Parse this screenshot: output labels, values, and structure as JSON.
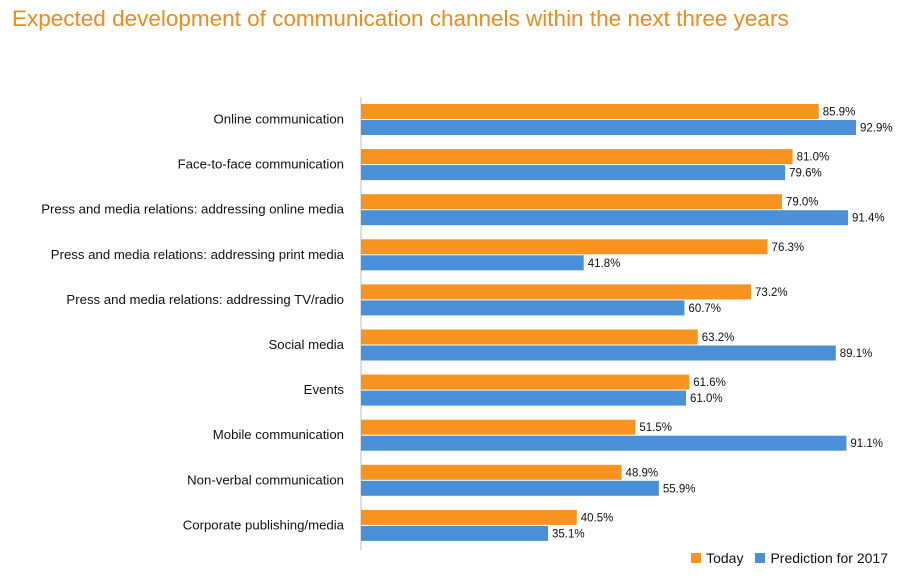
{
  "chart_data": {
    "type": "bar",
    "orientation": "horizontal",
    "title": "Expected development of communication channels within the next three years",
    "categories": [
      "Online communication",
      "Face-to-face communication",
      "Press and media relations: addressing online media",
      "Press and media relations: addressing print media",
      "Press and media relations: addressing TV/radio",
      "Social media",
      "Events",
      "Mobile communication",
      "Non-verbal communication",
      "Corporate publishing/media"
    ],
    "series": [
      {
        "name": "Today",
        "color": "#f7931e",
        "values": [
          85.9,
          81.0,
          79.0,
          76.3,
          73.2,
          63.2,
          61.6,
          51.5,
          48.9,
          40.5
        ],
        "labels": [
          "85.9%",
          "81.0%",
          "79.0%",
          "76.3%",
          "73.2%",
          "63.2%",
          "61.6%",
          "51.5%",
          "48.9%",
          "40.5%"
        ]
      },
      {
        "name": "Prediction for 2017",
        "color": "#4a90d9",
        "values": [
          92.9,
          79.6,
          91.4,
          41.8,
          60.7,
          89.1,
          61.0,
          91.1,
          55.9,
          35.1
        ],
        "labels": [
          "92.9%",
          "79.6%",
          "91.4%",
          "41.8%",
          "60.7%",
          "89.1%",
          "61.0%",
          "91.1%",
          "55.9%",
          "35.1%"
        ]
      }
    ],
    "xlim": [
      0,
      100
    ],
    "grid": false,
    "legend_position": "bottom-right"
  }
}
